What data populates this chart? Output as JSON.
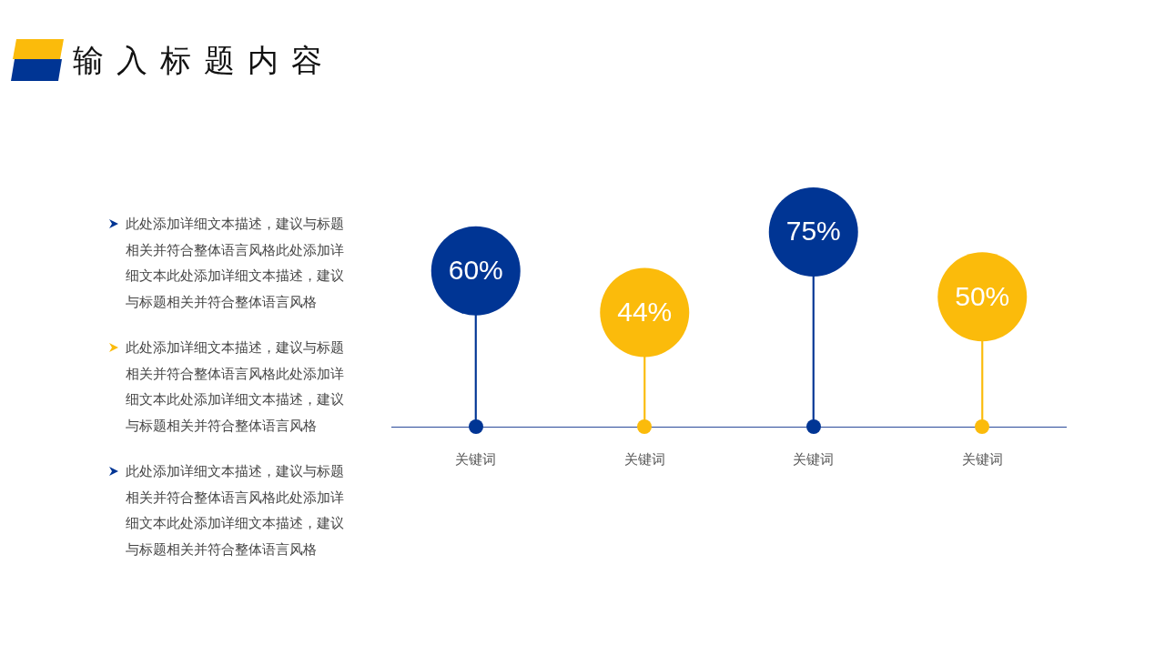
{
  "chart_data": {
    "type": "lollipop",
    "title": "输入标题内容",
    "categories": [
      "关键词",
      "关键词",
      "关键词",
      "关键词"
    ],
    "values": [
      60,
      44,
      75,
      50
    ],
    "value_labels": [
      "60%",
      "44%",
      "75%",
      "50%"
    ],
    "colors": [
      "#003594",
      "#fbbb0b",
      "#003594",
      "#fbbb0b"
    ],
    "marker": "circle",
    "tick_labels": "x",
    "annotations": [
      "此处添加详细文本描述，建议与标题相关并符合整体语言风格此处添加详细文本此处添加详细文本描述，建议与标题相关并符合整体语言风格",
      "此处添加详细文本描述，建议与标题相关并符合整体语言风格此处添加详细文本此处添加详细文本描述，建议与标题相关并符合整体语言风格",
      "此处添加详细文本描述，建议与标题相关并符合整体语言风格此处添加详细文本此处添加详细文本描述，建议与标题相关并符合整体语言风格"
    ]
  }
}
